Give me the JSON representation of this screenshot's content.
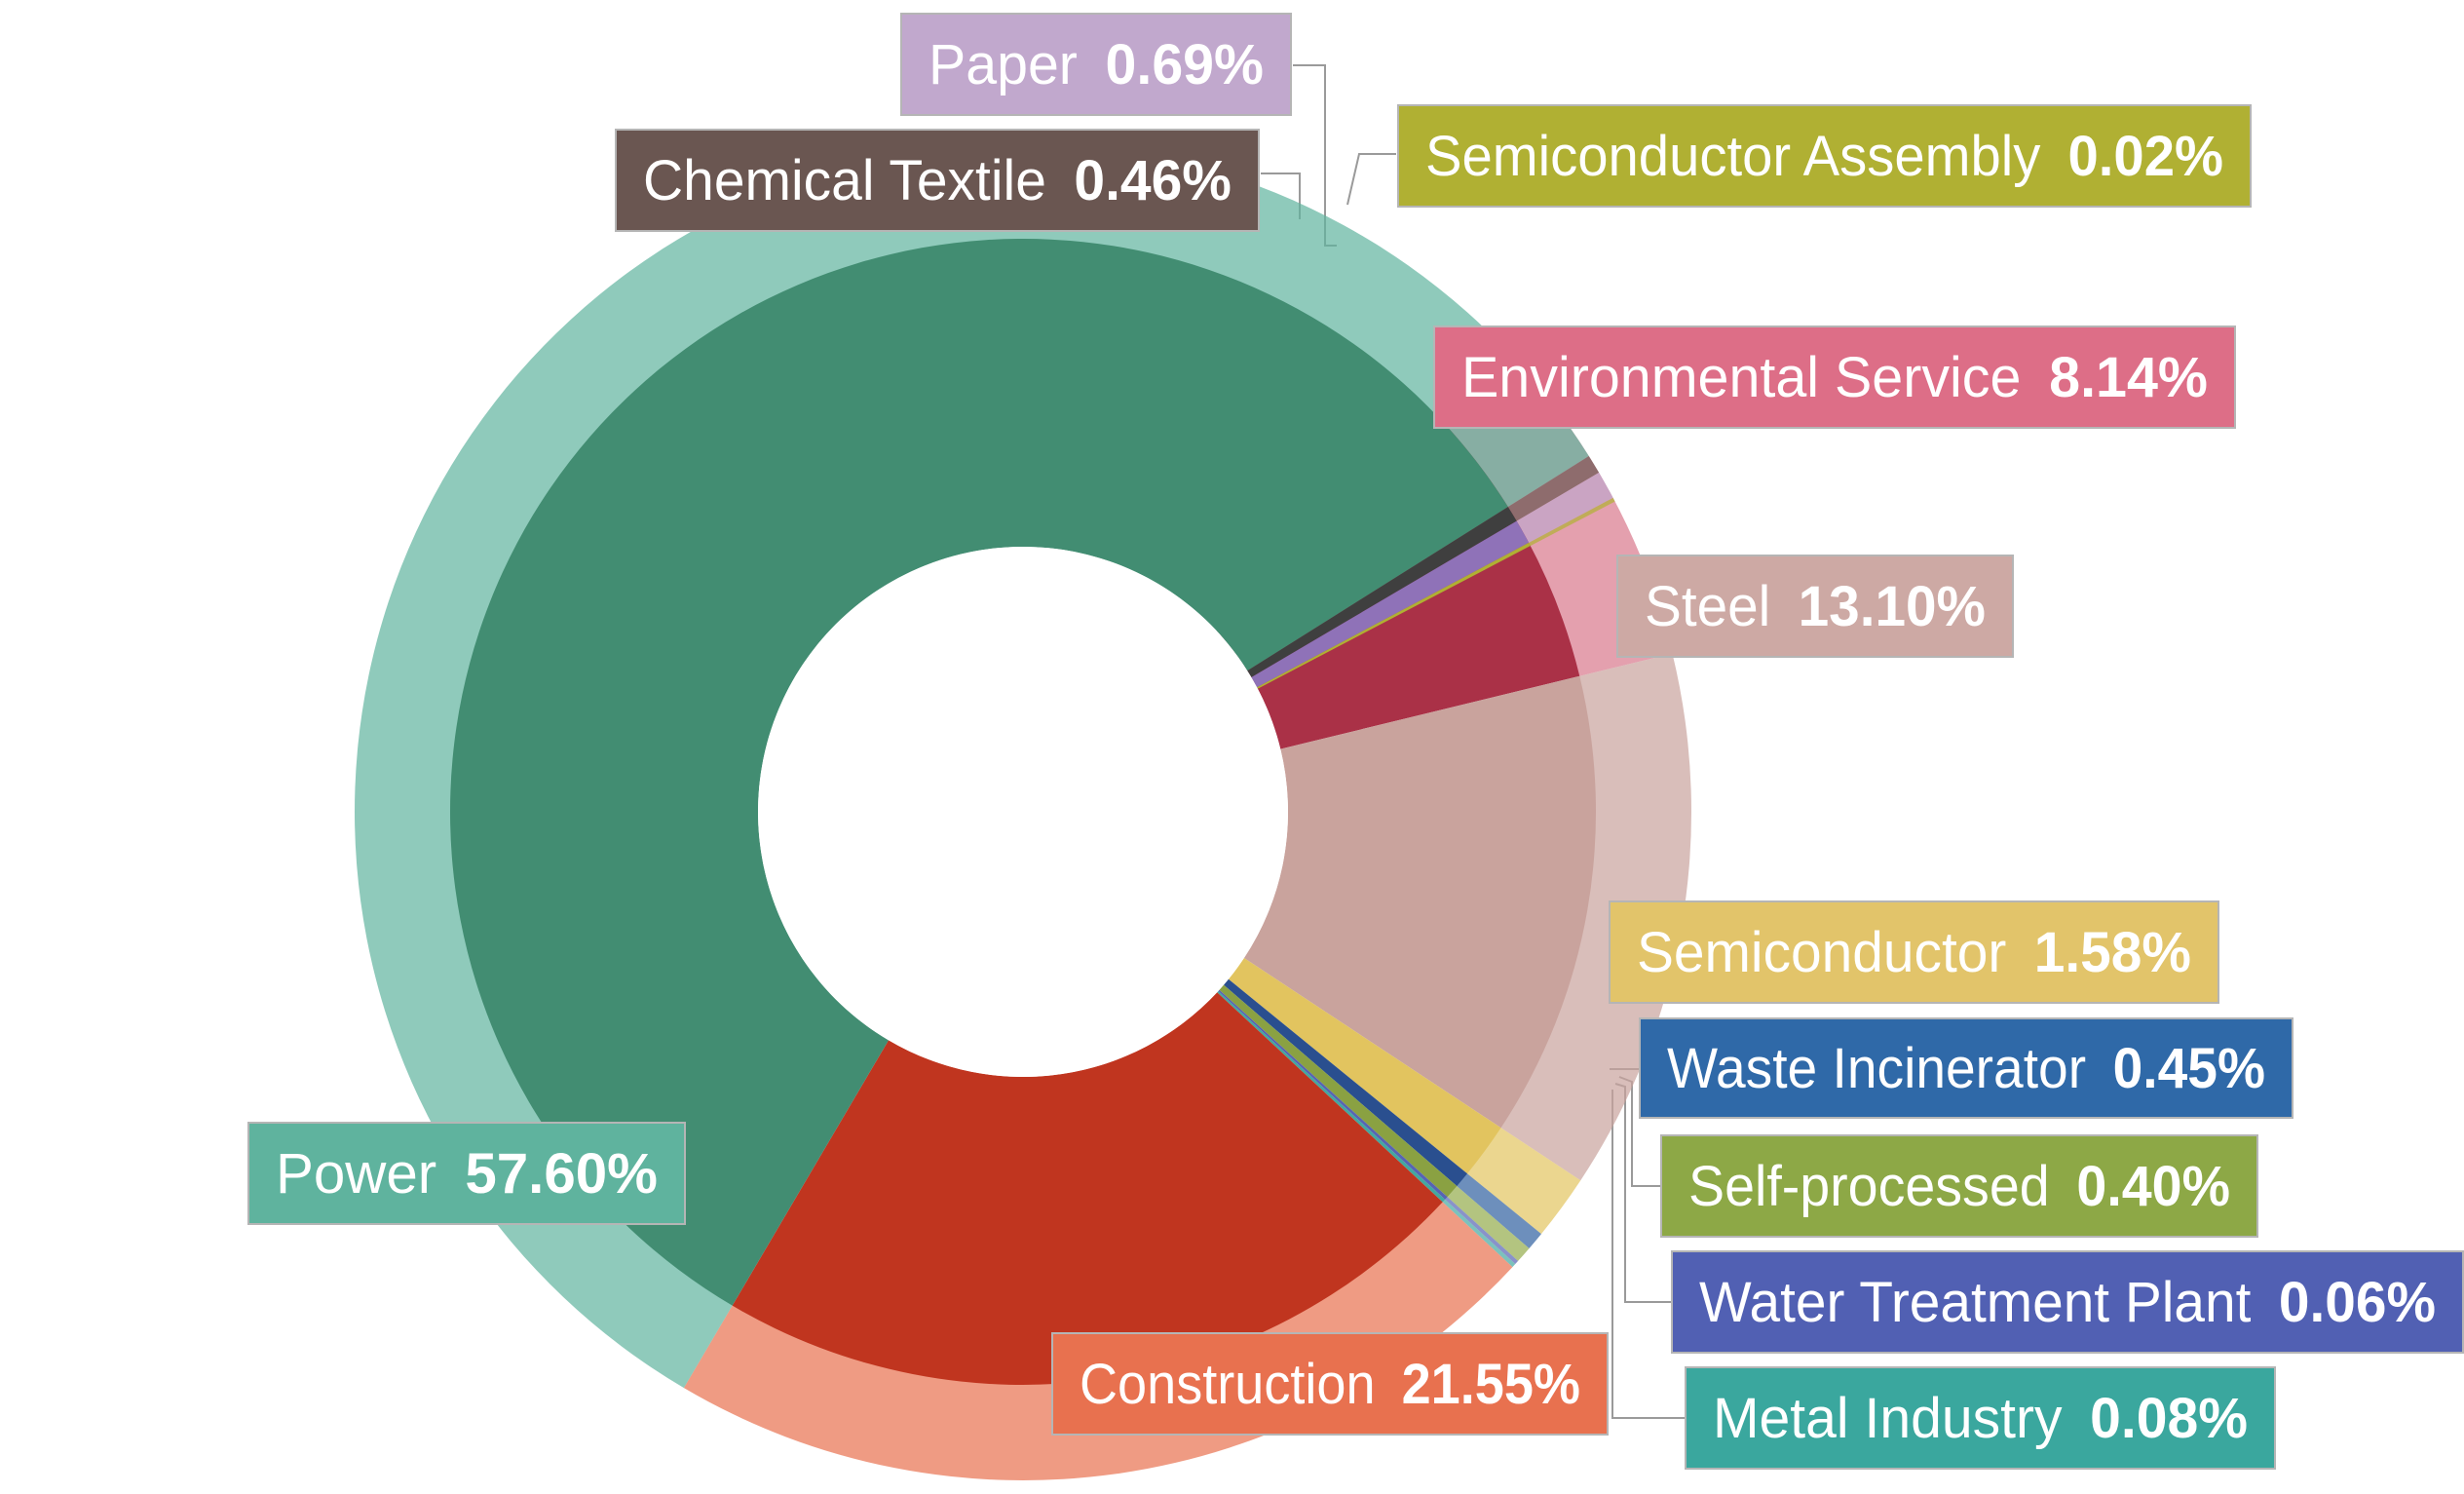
{
  "chart_data": {
    "type": "pie",
    "style": "donut with outer translucent ring",
    "title": "",
    "unit": "%",
    "slices": [
      {
        "label": "Environmental Service",
        "value": 8.14,
        "color": "#d9788c",
        "inner_color": "#aa3147"
      },
      {
        "label": "Steel",
        "value": 13.1,
        "color": "#c9a29c",
        "inner_color": "#c9a39d"
      },
      {
        "label": "Semiconductor",
        "value": 1.58,
        "color": "#e2c45f",
        "inner_color": "#e2c45f"
      },
      {
        "label": "Waste Incinerator",
        "value": 0.45,
        "color": "#2f5fa0",
        "inner_color": "#2a4f8f"
      },
      {
        "label": "Self-processed",
        "value": 0.4,
        "color": "#93ab4a",
        "inner_color": "#8aa142"
      },
      {
        "label": "Water Treatment Plant",
        "value": 0.06,
        "color": "#5764b3",
        "inner_color": "#5764b3"
      },
      {
        "label": "Metal Industry",
        "value": 0.08,
        "color": "#43a89f",
        "inner_color": "#43a89f"
      },
      {
        "label": "Construction",
        "value": 21.55,
        "color": "#e8714f",
        "inner_color": "#c0351f"
      },
      {
        "label": "Power",
        "value": 57.6,
        "color": "#5fb39e",
        "inner_color": "#428d72"
      },
      {
        "label": "Chemical Textile",
        "value": 0.46,
        "color": "#6a5651",
        "inner_color": "#3f3f3f"
      },
      {
        "label": "Paper",
        "value": 0.69,
        "color": "#bfa5cc",
        "inner_color": "#8f72b8"
      },
      {
        "label": "Semiconductor Assembly",
        "value": 0.02,
        "color": "#b0b033",
        "inner_color": "#b0b033"
      }
    ],
    "labels": [
      {
        "name": "Paper",
        "value": "0.69%",
        "color": "#c1a8cd"
      },
      {
        "name": "Chemical Textile",
        "value": "0.46%",
        "color": "#6a5651"
      },
      {
        "name": "Semiconductor Assembly",
        "value": "0.02%",
        "color": "#b0b033"
      },
      {
        "name": "Environmental Service",
        "value": "8.14%",
        "color": "#dd6e87"
      },
      {
        "name": "Steel",
        "value": "13.10%",
        "color": "#cda9a4"
      },
      {
        "name": "Semiconductor",
        "value": "1.58%",
        "color": "#e2c46a"
      },
      {
        "name": "Waste Incinerator",
        "value": "0.45%",
        "color": "#2f69a8"
      },
      {
        "name": "Self-processed",
        "value": "0.40%",
        "color": "#8da846"
      },
      {
        "name": "Water Treatment Plant",
        "value": "0.06%",
        "color": "#5160b3"
      },
      {
        "name": "Metal Industry",
        "value": "0.08%",
        "color": "#3aa79e"
      },
      {
        "name": "Construction",
        "value": "21.55%",
        "color": "#e8714f"
      },
      {
        "name": "Power",
        "value": "57.60%",
        "color": "#5fb39e"
      }
    ]
  }
}
